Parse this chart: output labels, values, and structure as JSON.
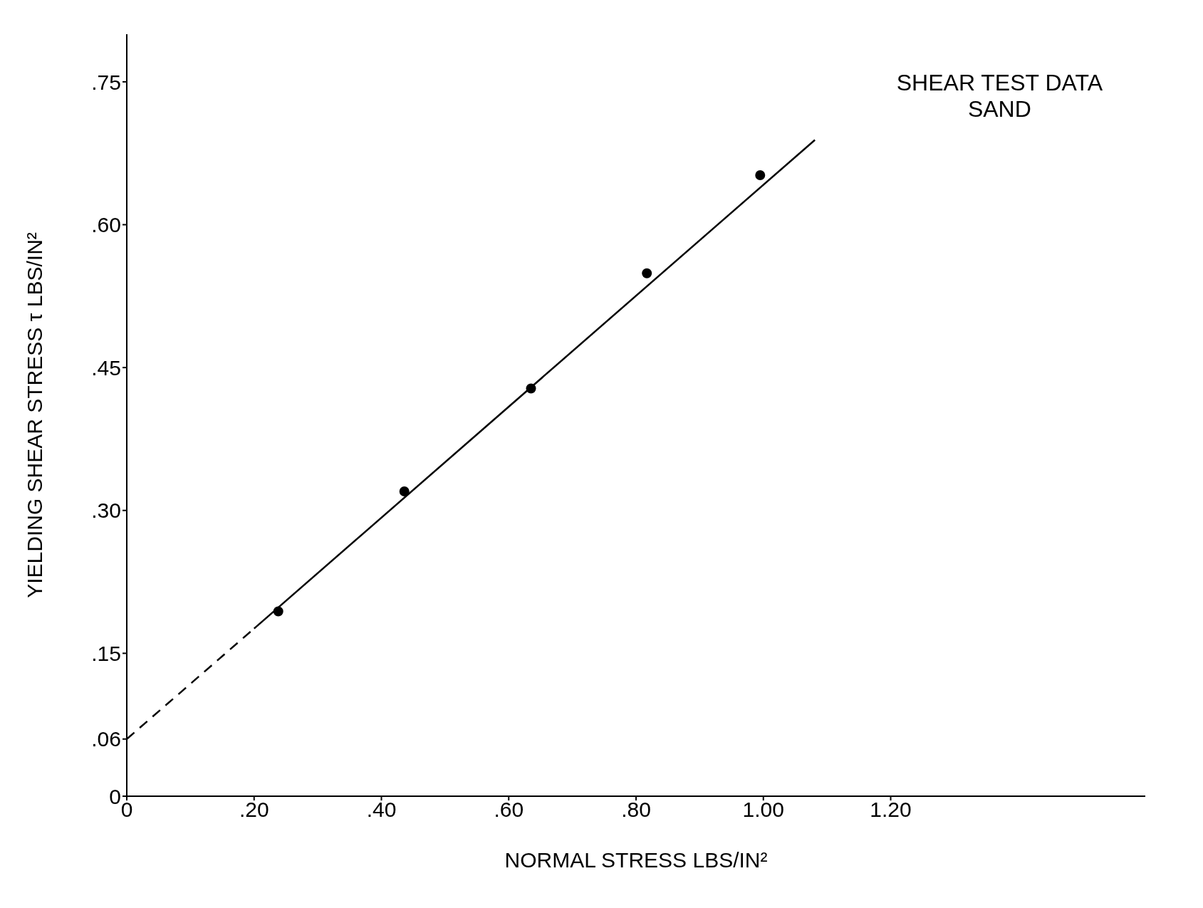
{
  "chart_data": {
    "type": "scatter",
    "title": "SHEAR TEST DATA",
    "subtitle": "SAND",
    "xlabel": "NORMAL STRESS LBS/IN²",
    "ylabel": "YIELDING SHEAR STRESS τ LBS/IN²",
    "xlim": [
      0,
      1.6
    ],
    "ylim": [
      0,
      0.8
    ],
    "xticks": [
      0,
      {
        "value": 0.2,
        "label": ".20"
      },
      {
        "value": 0.4,
        "label": ".40"
      },
      {
        "value": 0.6,
        "label": ".60"
      },
      {
        "value": 0.8,
        "label": ".80"
      },
      {
        "value": 1.0,
        "label": "1.00"
      },
      {
        "value": 1.2,
        "label": "1.20"
      }
    ],
    "yticks": [
      0,
      {
        "value": 0.06,
        "label": ".06"
      },
      {
        "value": 0.15,
        "label": ".15"
      },
      {
        "value": 0.3,
        "label": ".30"
      },
      {
        "value": 0.45,
        "label": ".45"
      },
      {
        "value": 0.6,
        "label": ".60"
      },
      {
        "value": 0.75,
        "label": ".75"
      }
    ],
    "grid": false,
    "series": [
      {
        "color": "#000000",
        "marker": "circle",
        "x": [
          0.238,
          0.436,
          0.635,
          0.817,
          0.995
        ],
        "values": [
          0.194,
          0.32,
          0.428,
          0.549,
          0.652
        ]
      },
      {
        "type": "line",
        "color": "#000000",
        "line_style": "dashed",
        "marker": "none",
        "x": [
          0,
          0.2
        ],
        "values": [
          0.06,
          0.176
        ]
      },
      {
        "type": "line",
        "color": "#000000",
        "line_style": "solid",
        "marker": "none",
        "x": [
          0.2,
          1.081
        ],
        "values": [
          0.176,
          0.689
        ]
      }
    ]
  }
}
